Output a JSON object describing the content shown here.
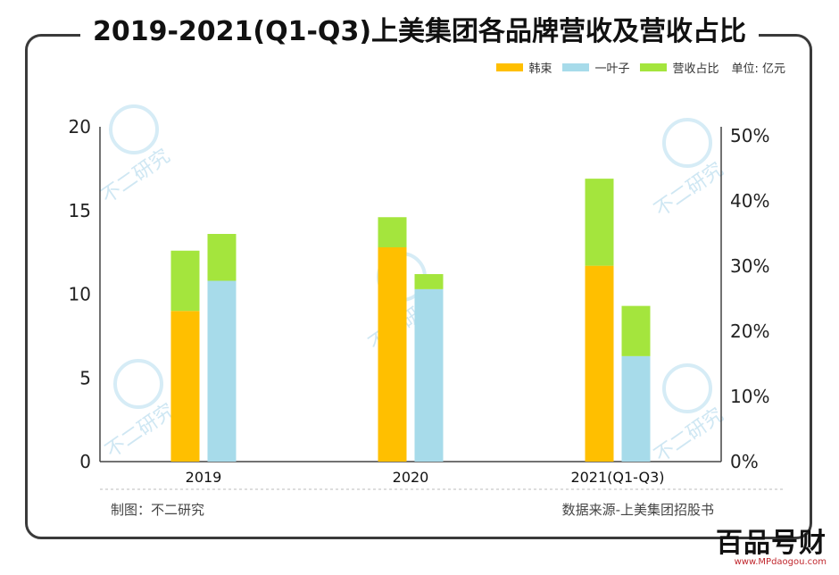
{
  "title": "2019-2021(Q1-Q3)上美集团各品牌营收及营收占比",
  "unit": "单位: 亿元",
  "credit": "制图：不二研究",
  "source": "数据来源-上美集团招股书",
  "brand": {
    "name": "百品号财",
    "url": "www.MPdaogou.com"
  },
  "watermark": "不二研究",
  "colors": {
    "hanshu": "#FFBF00",
    "yiyezi": "#A7DBEA",
    "share": "#A4E53D",
    "axis": "#444444"
  },
  "chart_data": {
    "type": "bar",
    "categories": [
      "2019",
      "2020",
      "2021(Q1-Q3)"
    ],
    "series": [
      {
        "name": "韩束",
        "color": "#FFBF00",
        "values": [
          9.0,
          12.8,
          11.7
        ],
        "share_increment": [
          3.6,
          1.8,
          5.2
        ]
      },
      {
        "name": "一叶子",
        "color": "#A7DBEA",
        "values": [
          10.8,
          10.3,
          6.3
        ],
        "share_increment": [
          2.8,
          0.9,
          3.0
        ]
      }
    ],
    "share_legend": {
      "name": "营收占比",
      "color": "#A4E53D"
    },
    "y_left": {
      "ticks": [
        "0",
        "5",
        "10",
        "15",
        "20"
      ],
      "ylim": [
        0,
        20
      ]
    },
    "y_right": {
      "ticks": [
        "0%",
        "10%",
        "20%",
        "30%",
        "40%",
        "50%"
      ],
      "ylim": [
        0,
        50
      ]
    }
  }
}
